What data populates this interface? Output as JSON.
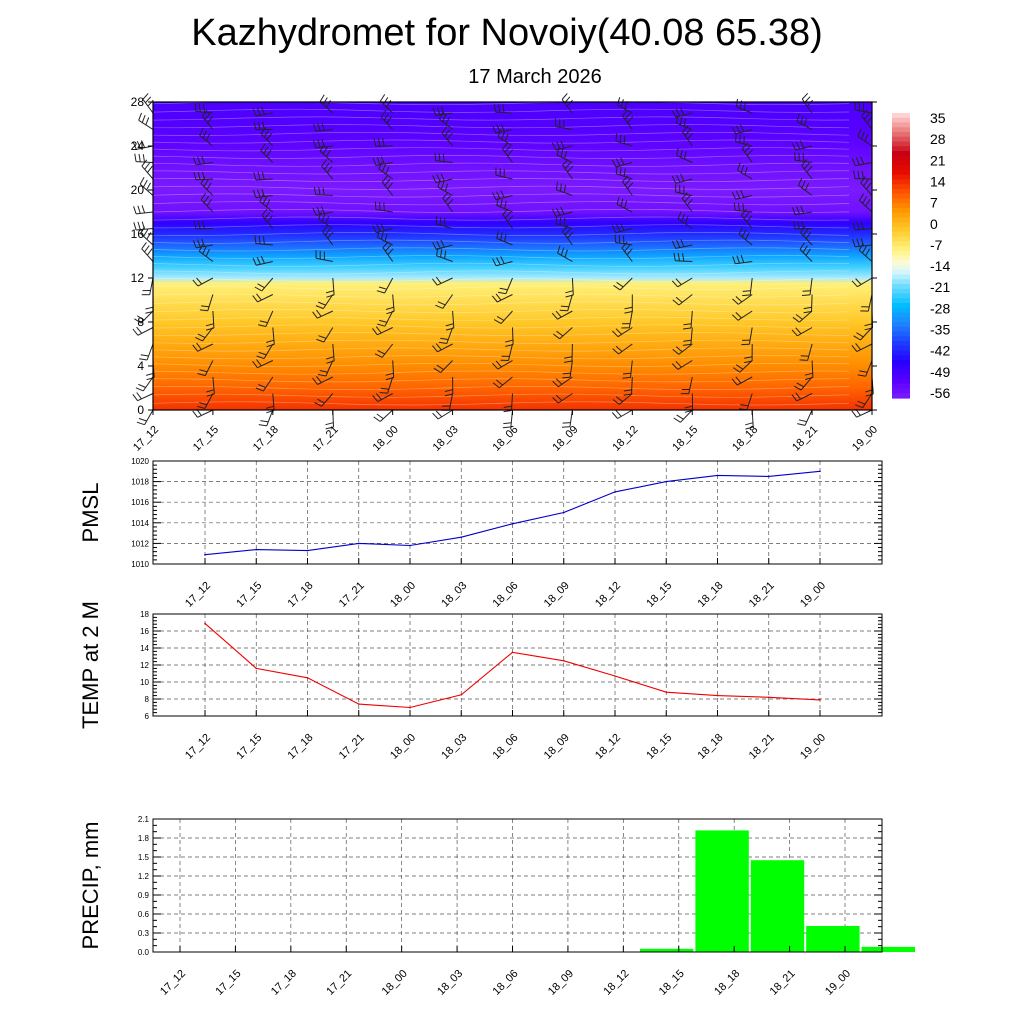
{
  "title": "Kazhydromet for Novoiy(40.08 65.38)",
  "subtitle": "17 March 2026",
  "chart_data": [
    {
      "type": "heatmap",
      "x_categories": [
        "17_12",
        "17_15",
        "17_18",
        "17_21",
        "18_00",
        "18_03",
        "18_06",
        "18_09",
        "18_12",
        "18_15",
        "18_18",
        "18_21",
        "19_00"
      ],
      "y_ticks": [
        0,
        4,
        8,
        12,
        16,
        20,
        24,
        28
      ],
      "ylim": [
        0,
        28
      ],
      "colorbar": {
        "ticks": [
          35,
          28,
          21,
          14,
          7,
          0,
          -7,
          -14,
          -21,
          -28,
          -35,
          -42,
          -49,
          -56
        ],
        "range": [
          -63,
          42
        ]
      },
      "temperature_profile": [
        {
          "height": 0,
          "value": 17
        },
        {
          "height": 2,
          "value": 12
        },
        {
          "height": 4,
          "value": 8
        },
        {
          "height": 6,
          "value": 4
        },
        {
          "height": 8,
          "value": 0
        },
        {
          "height": 10,
          "value": -4
        },
        {
          "height": 11.5,
          "value": -7
        },
        {
          "height": 12,
          "value": -18
        },
        {
          "height": 13,
          "value": -24
        },
        {
          "height": 14,
          "value": -31
        },
        {
          "height": 15,
          "value": -38
        },
        {
          "height": 16,
          "value": -44
        },
        {
          "height": 17,
          "value": -50
        },
        {
          "height": 18,
          "value": -60
        },
        {
          "height": 20,
          "value": -62
        },
        {
          "height": 22,
          "value": -60
        },
        {
          "height": 24,
          "value": -57
        },
        {
          "height": 26,
          "value": -55
        },
        {
          "height": 28,
          "value": -54
        }
      ],
      "wind_barbs": true
    },
    {
      "type": "line",
      "ylabel": "PMSL",
      "x": [
        "17_12",
        "17_15",
        "17_18",
        "17_21",
        "18_00",
        "18_03",
        "18_06",
        "18_09",
        "18_12",
        "18_15",
        "18_18",
        "18_21",
        "19_00"
      ],
      "values": [
        1010.9,
        1011.4,
        1011.3,
        1012.0,
        1011.8,
        1012.6,
        1013.9,
        1015.0,
        1017.0,
        1018.0,
        1018.6,
        1018.5,
        1019.0
      ],
      "ylim": [
        1010,
        1020
      ],
      "y_ticks": [
        1010,
        1012,
        1014,
        1016,
        1018,
        1020
      ],
      "color": "#0000cc",
      "grid": true
    },
    {
      "type": "line",
      "ylabel": "TEMP at 2 M",
      "x": [
        "17_12",
        "17_15",
        "17_18",
        "17_21",
        "18_00",
        "18_03",
        "18_06",
        "18_09",
        "18_12",
        "18_15",
        "18_18",
        "18_21",
        "19_00"
      ],
      "values": [
        16.9,
        11.6,
        10.5,
        7.4,
        7.0,
        8.5,
        13.5,
        12.5,
        10.7,
        8.8,
        8.4,
        8.2,
        7.9
      ],
      "ylim": [
        6,
        18
      ],
      "y_ticks": [
        6,
        8,
        10,
        12,
        14,
        16,
        18
      ],
      "color": "#ee0000",
      "grid": true
    },
    {
      "type": "bar",
      "ylabel": "PRECIP, mm",
      "categories": [
        "17_12",
        "17_15",
        "17_18",
        "17_21",
        "18_00",
        "18_03",
        "18_06",
        "18_09",
        "18_12",
        "18_15",
        "18_18",
        "18_21",
        "19_00"
      ],
      "values": [
        0,
        0,
        0,
        0,
        0,
        0,
        0,
        0,
        0.05,
        1.92,
        1.45,
        0.41,
        0.08
      ],
      "ylim": [
        0,
        2.1
      ],
      "y_ticks": [
        0.0,
        0.3,
        0.6,
        0.9,
        1.2,
        1.5,
        1.8,
        2.1
      ],
      "y_tick_labels": [
        "0.0",
        "0.3",
        "0.6",
        "0.9",
        "1.2",
        "1.5",
        "1.8",
        "2.1"
      ],
      "color": "#00ff00",
      "grid": true
    }
  ]
}
